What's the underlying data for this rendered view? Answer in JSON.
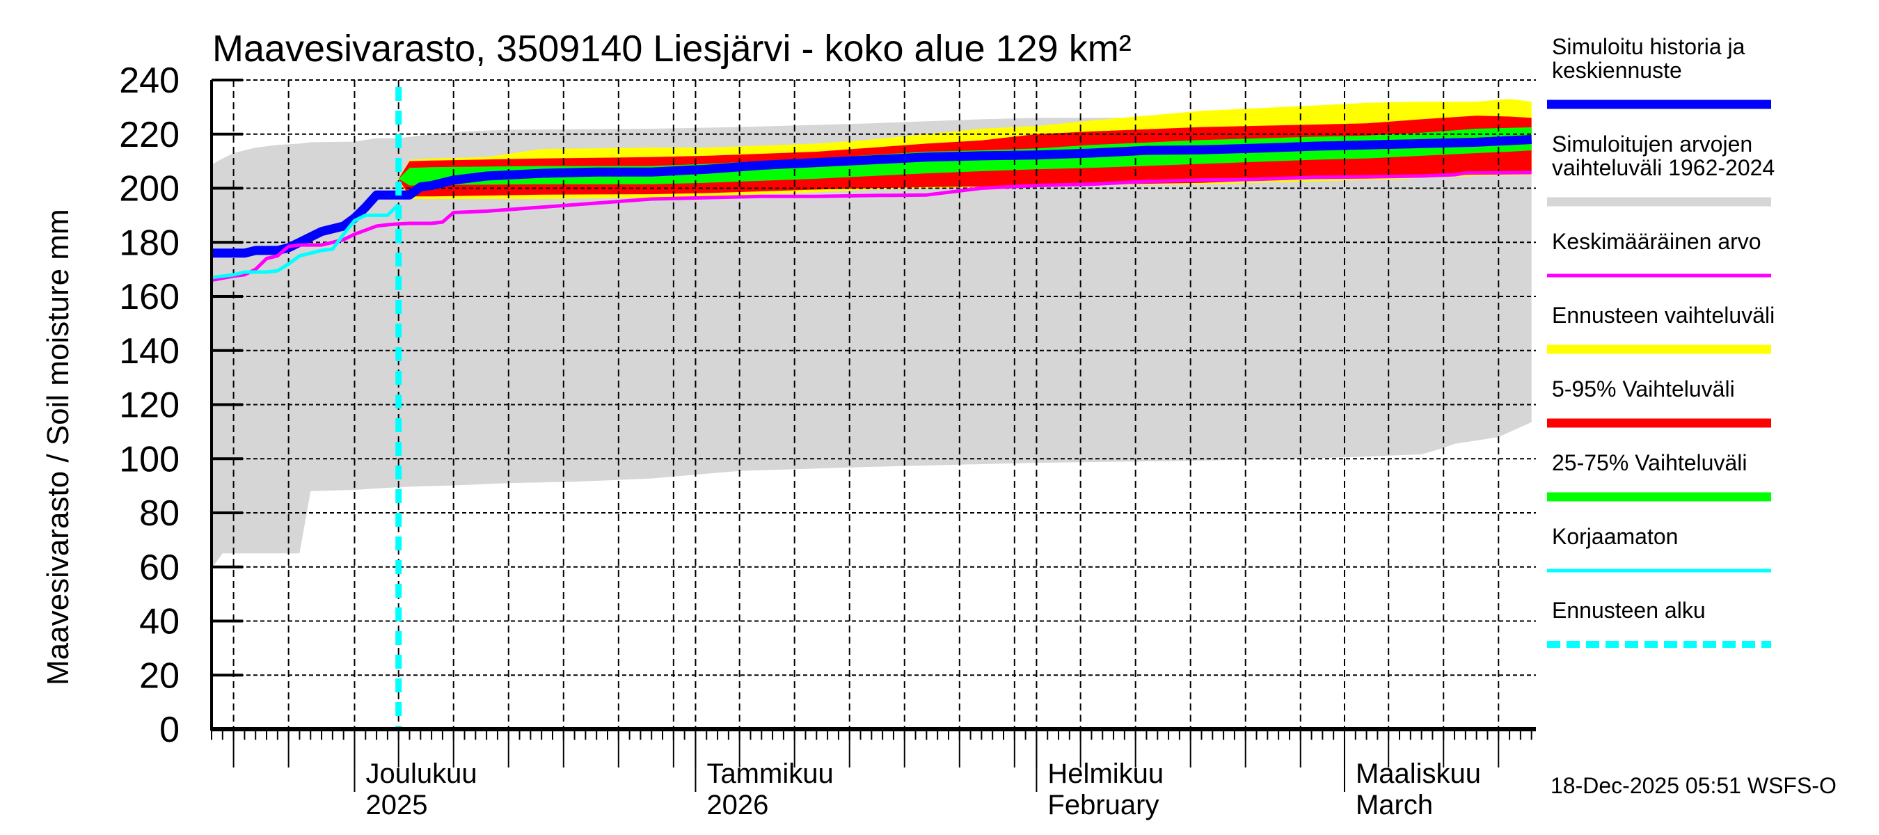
{
  "chart_data": {
    "type": "area",
    "title": "Maavesivarasto, 3509140 Liesjärvi - koko alue 129 km²",
    "ylabel": "Maavesivarasto / Soil moisture   mm",
    "xlabel": "",
    "ylim": [
      0,
      240
    ],
    "yticks": [
      0,
      20,
      40,
      60,
      80,
      100,
      120,
      140,
      160,
      180,
      200,
      220,
      240
    ],
    "x_start": "2025-11-18",
    "x_end": "2026-03-18",
    "x_unit": "day offset from 2025-11-18",
    "forecast_start_day": 17,
    "grid": true,
    "month_ticks": [
      {
        "day": 13,
        "line1": "Joulukuu",
        "line2": "2025"
      },
      {
        "day": 44,
        "line1": "Tammikuu",
        "line2": "2026"
      },
      {
        "day": 75,
        "line1": "Helmikuu",
        "line2": "February"
      },
      {
        "day": 103,
        "line1": "Maaliskuu",
        "line2": "March"
      }
    ],
    "series": [
      {
        "name": "Simuloitujen arvojen vaihteluväli 1962-2024",
        "kind": "band",
        "color": "#d6d6d6",
        "x": [
          0,
          1,
          2,
          4,
          6,
          8,
          9,
          13,
          15,
          17,
          19,
          21,
          23,
          27,
          33,
          40,
          48,
          60,
          70,
          75,
          90,
          103,
          110,
          112,
          113,
          117,
          120
        ],
        "low": [
          59.5,
          65,
          65,
          65,
          65,
          65,
          88,
          88.5,
          89,
          89.5,
          89.8,
          90,
          90.3,
          91,
          91.5,
          92.7,
          95.5,
          97,
          98,
          98.5,
          99.3,
          100.5,
          101.6,
          104,
          105.5,
          108,
          113.5
        ],
        "high": [
          208.7,
          211,
          213,
          215,
          216,
          216.5,
          217,
          217.2,
          218.5,
          218.5,
          219.5,
          220.3,
          221,
          221.6,
          221.8,
          222,
          222.6,
          224,
          225.5,
          226,
          226,
          225.8,
          225.5,
          225,
          224.5,
          224,
          224
        ]
      },
      {
        "name": "Ennusteen vaihteluväli",
        "kind": "band",
        "color": "#ffff00",
        "x": [
          17,
          18,
          20,
          25,
          30,
          40,
          45,
          55,
          60,
          65,
          70,
          75,
          80,
          90,
          100,
          105,
          110,
          115,
          118,
          120
        ],
        "low": [
          203.5,
          196,
          196,
          196,
          196,
          196.5,
          197,
          198.5,
          199.5,
          200,
          200.5,
          200.8,
          201.2,
          201.5,
          202.5,
          203,
          203.8,
          204.5,
          204.8,
          205
        ],
        "high": [
          203.5,
          210.5,
          211,
          211.5,
          214.5,
          215,
          215,
          216.5,
          218,
          220,
          222,
          223,
          225,
          228.6,
          230.5,
          231.6,
          232,
          232,
          233,
          232
        ]
      },
      {
        "name": "5-95% Vaihteluväli",
        "kind": "band",
        "color": "#ff0000",
        "x": [
          17,
          18,
          20,
          25,
          30,
          40,
          45,
          55,
          60,
          65,
          70,
          75,
          80,
          90,
          100,
          105,
          110,
          115,
          118,
          120
        ],
        "low": [
          203.5,
          197,
          197,
          197.3,
          197.6,
          197.8,
          198.2,
          199.5,
          200,
          200.4,
          200.6,
          201,
          201.3,
          202,
          203.5,
          204.5,
          205,
          205.5,
          206,
          206
        ],
        "high": [
          203.5,
          210,
          210.2,
          210.6,
          211,
          211.5,
          212,
          213.5,
          215,
          216.5,
          217.7,
          220,
          221,
          222.6,
          223.5,
          224,
          225.5,
          226.8,
          226.5,
          226
        ]
      },
      {
        "name": "25-75% Vaihteluväli",
        "kind": "band",
        "color": "#00ff00",
        "x": [
          17,
          18,
          20,
          25,
          30,
          40,
          45,
          55,
          60,
          65,
          70,
          75,
          80,
          90,
          100,
          105,
          110,
          115,
          118,
          120
        ],
        "low": [
          203.5,
          201,
          201.2,
          201.3,
          201.5,
          201.5,
          202,
          203.5,
          204.5,
          205.5,
          206.3,
          207,
          207.5,
          209,
          210.5,
          211,
          212,
          213,
          213.5,
          214
        ],
        "high": [
          203.5,
          207.5,
          207.8,
          208,
          208.2,
          208.2,
          209,
          211,
          212.3,
          213.5,
          214,
          214.7,
          216,
          217.8,
          219,
          219.5,
          220.5,
          222,
          222.3,
          222.5
        ]
      },
      {
        "name": "Simuloitu historia ja keskiennuste",
        "kind": "line",
        "color": "#0000ff",
        "x": [
          0,
          3,
          4,
          5,
          6,
          7,
          8,
          9,
          10,
          11,
          12,
          13,
          14,
          15,
          16,
          17,
          18,
          19,
          20,
          22,
          25,
          30,
          35,
          40,
          45,
          50,
          55,
          60,
          65,
          70,
          75,
          80,
          85,
          90,
          95,
          100,
          105,
          110,
          115,
          120
        ],
        "y": [
          176,
          176,
          177,
          177,
          177,
          178,
          180,
          182,
          184,
          185,
          186,
          189,
          193,
          197.5,
          197.5,
          197.5,
          197.5,
          200.5,
          201,
          203,
          204.5,
          205.5,
          206,
          206,
          207,
          208.5,
          209.5,
          210.5,
          211.5,
          212,
          212.3,
          213,
          214,
          214.2,
          214.8,
          215.5,
          216,
          216.5,
          217,
          218
        ]
      },
      {
        "name": "Keskimääräinen arvo",
        "kind": "line",
        "color": "#ff00ff",
        "x": [
          0,
          2,
          3,
          4,
          5,
          6,
          7,
          8,
          10,
          11,
          12,
          13,
          14,
          15,
          16,
          17,
          18,
          20,
          21,
          22,
          25,
          30,
          35,
          40,
          45,
          50,
          55,
          60,
          65,
          70,
          75,
          80,
          85,
          90,
          95,
          100,
          105,
          110,
          113,
          114,
          118,
          120
        ],
        "y": [
          166,
          167.5,
          168,
          170,
          174,
          175,
          178.5,
          179,
          179,
          180,
          181,
          183,
          184.5,
          186,
          186.5,
          186.8,
          187,
          187,
          187.5,
          191,
          191.5,
          193,
          194.5,
          196,
          196.5,
          197,
          197,
          197.3,
          197.5,
          200,
          201,
          201.5,
          202.5,
          203,
          203.3,
          204,
          204.2,
          204.5,
          205,
          205.6,
          205.7,
          205.8
        ]
      },
      {
        "name": "Korjaamaton",
        "kind": "line",
        "color": "#00ffff",
        "x": [
          0,
          2,
          3,
          4,
          5,
          6,
          7,
          8,
          9,
          10,
          11,
          12,
          13,
          14,
          15,
          16,
          17
        ],
        "y": [
          167,
          168,
          169,
          169,
          169,
          169.5,
          172,
          175,
          176,
          177,
          177.5,
          183,
          188,
          190,
          190,
          190,
          194
        ]
      }
    ],
    "forecast_start_line": {
      "name": "Ennusteen alku",
      "color": "#00ffff",
      "day": 17
    }
  },
  "legend": {
    "items": [
      {
        "label_line1": "Simuloitu historia ja",
        "label_line2": "keskiennuste",
        "color": "#0000ff",
        "style": "thick"
      },
      {
        "label_line1": "Simuloitujen arvojen",
        "label_line2": "vaihteluväli 1962-2024",
        "color": "#d6d6d6",
        "style": "thick"
      },
      {
        "label_line1": "Keskimääräinen arvo",
        "label_line2": "",
        "color": "#ff00ff",
        "style": "thin"
      },
      {
        "label_line1": "Ennusteen vaihteluväli",
        "label_line2": "",
        "color": "#ffff00",
        "style": "thick"
      },
      {
        "label_line1": "5-95% Vaihteluväli",
        "label_line2": "",
        "color": "#ff0000",
        "style": "thick"
      },
      {
        "label_line1": "25-75% Vaihteluväli",
        "label_line2": "",
        "color": "#00ff00",
        "style": "thick"
      },
      {
        "label_line1": "Korjaamaton",
        "label_line2": "",
        "color": "#00ffff",
        "style": "thin"
      },
      {
        "label_line1": "Ennusteen alku",
        "label_line2": "",
        "color": "#00ffff",
        "style": "dashed"
      }
    ]
  },
  "footer": {
    "timestamp": "18-Dec-2025 05:51 WSFS-O"
  }
}
